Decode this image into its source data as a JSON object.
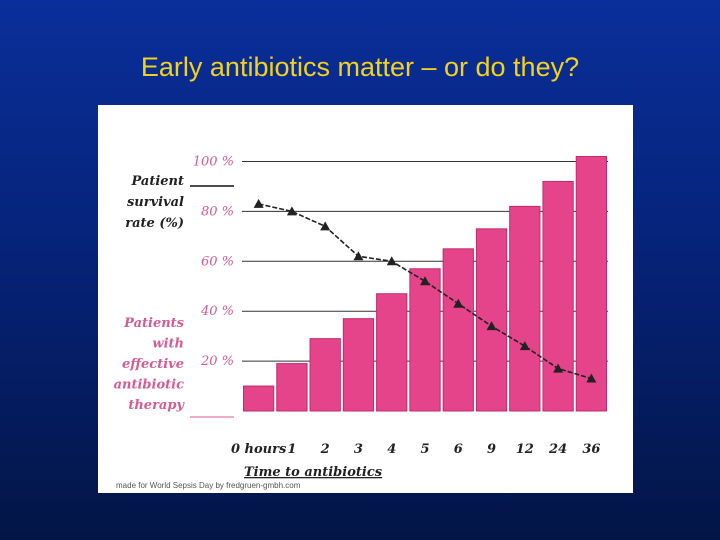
{
  "slide": {
    "title": "Early antibiotics matter – or do they?"
  },
  "chart_data": {
    "type": "bar",
    "categories": [
      "0 hours",
      "1",
      "2",
      "3",
      "4",
      "5",
      "6",
      "9",
      "12",
      "24",
      "36"
    ],
    "series": [
      {
        "name": "Patients with effective antibiotic therapy",
        "type": "bar",
        "values": [
          10,
          19,
          29,
          37,
          47,
          57,
          65,
          73,
          82,
          92,
          102
        ]
      },
      {
        "name": "Patient survival rate (%)",
        "type": "line",
        "values": [
          83,
          80,
          74,
          62,
          60,
          52,
          43,
          34,
          26,
          17,
          13
        ]
      }
    ],
    "xlabel": "Time to antibiotics",
    "ylabel": "Patient survival rate (%)",
    "ytick_labels": [
      "100 %",
      "80 %",
      "60 %",
      "40 %",
      "20 %"
    ],
    "ytick_values": [
      100,
      80,
      60,
      40,
      20
    ],
    "ylim": [
      0,
      105
    ],
    "legend_bar_label": [
      "Patients",
      "with",
      "effective",
      "antibiotic",
      "therapy"
    ],
    "legend_line_label": [
      "Patient",
      "survival",
      "rate (%)"
    ],
    "credit": "made for World Sepsis Day by fredgruen-gmbh.com",
    "colors": {
      "bar": "#e5448a",
      "bar_stroke": "#c12a6c",
      "line": "#222222",
      "gridline": "#333333",
      "axis_text": "#d95a93",
      "label_text": "#222222",
      "title": "#f4d11a"
    }
  }
}
